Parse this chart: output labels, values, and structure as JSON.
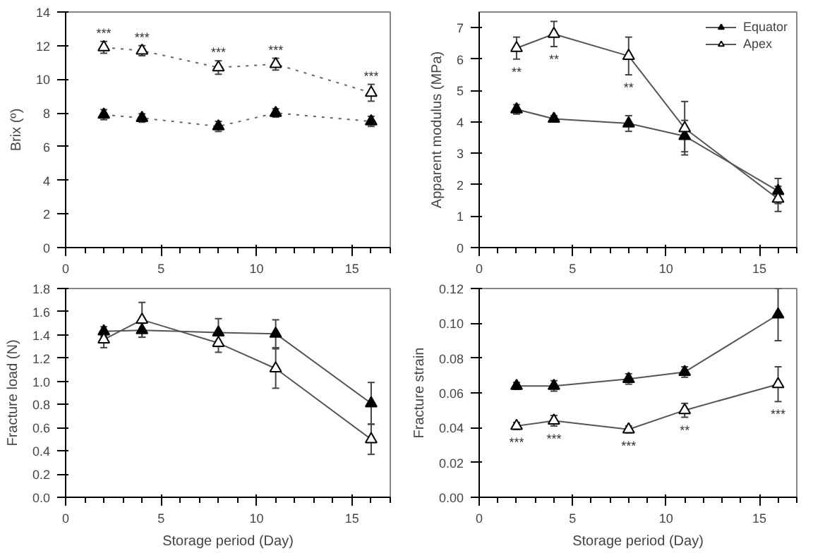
{
  "chart_data": [
    {
      "type": "line",
      "ylabel": "Brix (º)",
      "x": [
        2,
        4,
        8,
        11,
        16
      ],
      "xlim": [
        0,
        17
      ],
      "xticks": [
        0,
        5,
        10,
        15
      ],
      "ylim": [
        0,
        14
      ],
      "yticks": [
        0,
        2,
        4,
        6,
        8,
        10,
        12,
        14
      ],
      "grid": false,
      "legend": false,
      "marker": "triangle",
      "line_style": "dotted",
      "series": [
        {
          "color": "#000000",
          "values": [
            7.9,
            7.7,
            7.2,
            8.0,
            7.5
          ],
          "errors": [
            0.3,
            0.25,
            0.3,
            0.25,
            0.3
          ]
        },
        {
          "color": "#ffffff",
          "values": [
            11.9,
            11.7,
            10.7,
            10.9,
            9.2
          ],
          "errors": [
            0.35,
            0.3,
            0.4,
            0.35,
            0.5
          ]
        }
      ],
      "annotations": [
        {
          "text": "***",
          "x": 2,
          "y": 12.25
        },
        {
          "text": "***",
          "x": 4,
          "y": 12.0
        },
        {
          "text": "***",
          "x": 8,
          "y": 11.1
        },
        {
          "text": "***",
          "x": 11,
          "y": 11.25
        },
        {
          "text": "***",
          "x": 16,
          "y": 9.7
        }
      ]
    },
    {
      "type": "line",
      "ylabel": "Apparent modulus (MPa)",
      "x": [
        2,
        4,
        8,
        11,
        16
      ],
      "xlim": [
        0,
        17
      ],
      "xticks": [
        0,
        5,
        10,
        15
      ],
      "ylim": [
        0,
        7.5
      ],
      "yticks": [
        0,
        1,
        2,
        3,
        4,
        5,
        6,
        7
      ],
      "grid": false,
      "legend": "top right",
      "marker": "triangle",
      "line_style": "solid",
      "series": [
        {
          "name": "Equator",
          "color": "#000000",
          "values": [
            4.4,
            4.1,
            3.95,
            3.55,
            1.8
          ],
          "errors": [
            0.15,
            0.1,
            0.25,
            0.5,
            0.4
          ]
        },
        {
          "name": "Apex",
          "color": "#ffffff",
          "values": [
            6.35,
            6.8,
            6.1,
            3.8,
            1.55
          ],
          "errors": [
            0.35,
            0.4,
            0.6,
            0.85,
            0.4
          ]
        }
      ],
      "annotations": [
        {
          "text": "**",
          "x": 2,
          "y": 6.0
        },
        {
          "text": "**",
          "x": 4,
          "y": 6.4
        },
        {
          "text": "**",
          "x": 8,
          "y": 5.5
        }
      ]
    },
    {
      "type": "line",
      "xlabel": "Storage period (Day)",
      "ylabel": "Fracture load (N)",
      "x": [
        2,
        4,
        8,
        11,
        16
      ],
      "xlim": [
        0,
        17
      ],
      "xticks": [
        0,
        5,
        10,
        15
      ],
      "ylim": [
        0,
        1.8
      ],
      "yticks": [
        {
          "value": 0,
          "label": "0.0"
        },
        {
          "value": 0.2,
          "label": "0.2"
        },
        {
          "value": 0.4,
          "label": "0.4"
        },
        {
          "value": 0.6,
          "label": "0.6"
        },
        {
          "value": 0.8,
          "label": "0.8"
        },
        {
          "value": 1.0,
          "label": "1.0"
        },
        {
          "value": 1.2,
          "label": "1.2"
        },
        {
          "value": 1.4,
          "label": "1.4"
        },
        {
          "value": 1.6,
          "label": "1.6"
        },
        {
          "value": 1.8,
          "label": "1.8"
        }
      ],
      "grid": false,
      "legend": false,
      "marker": "triangle",
      "line_style": "solid",
      "series": [
        {
          "color": "#000000",
          "values": [
            1.43,
            1.44,
            1.42,
            1.41,
            0.81
          ],
          "errors": [
            0.04,
            0.06,
            0.12,
            0.12,
            0.18
          ]
        },
        {
          "color": "#ffffff",
          "values": [
            1.36,
            1.53,
            1.33,
            1.11,
            0.5
          ],
          "errors": [
            0.07,
            0.15,
            0.08,
            0.17,
            0.13
          ]
        }
      ]
    },
    {
      "type": "line",
      "xlabel": "Storage period (Day)",
      "ylabel": "Fracture strain",
      "x": [
        2,
        4,
        8,
        11,
        16
      ],
      "xlim": [
        0,
        17
      ],
      "xticks": [
        0,
        5,
        10,
        15
      ],
      "ylim": [
        0,
        0.12
      ],
      "yticks": [
        {
          "value": 0,
          "label": "0.00"
        },
        {
          "value": 0.02,
          "label": "0.02"
        },
        {
          "value": 0.04,
          "label": "0.04"
        },
        {
          "value": 0.06,
          "label": "0.06"
        },
        {
          "value": 0.08,
          "label": "0.08"
        },
        {
          "value": 0.1,
          "label": "0.10"
        },
        {
          "value": 0.12,
          "label": "0.12"
        }
      ],
      "grid": false,
      "legend": false,
      "marker": "triangle",
      "line_style": "solid",
      "series": [
        {
          "color": "#000000",
          "values": [
            0.064,
            0.064,
            0.068,
            0.072,
            0.105
          ],
          "errors": [
            0.002,
            0.003,
            0.003,
            0.003,
            0.015
          ]
        },
        {
          "color": "#ffffff",
          "values": [
            0.041,
            0.044,
            0.039,
            0.05,
            0.065
          ],
          "errors": [
            0.002,
            0.003,
            0.002,
            0.004,
            0.01
          ]
        }
      ],
      "annotations": [
        {
          "text": "***",
          "x": 2,
          "y": 0.039
        },
        {
          "text": "***",
          "x": 4,
          "y": 0.041
        },
        {
          "text": "***",
          "x": 8,
          "y": 0.037
        },
        {
          "text": "**",
          "x": 11,
          "y": 0.046
        },
        {
          "text": "***",
          "x": 16,
          "y": 0.055
        }
      ]
    }
  ]
}
